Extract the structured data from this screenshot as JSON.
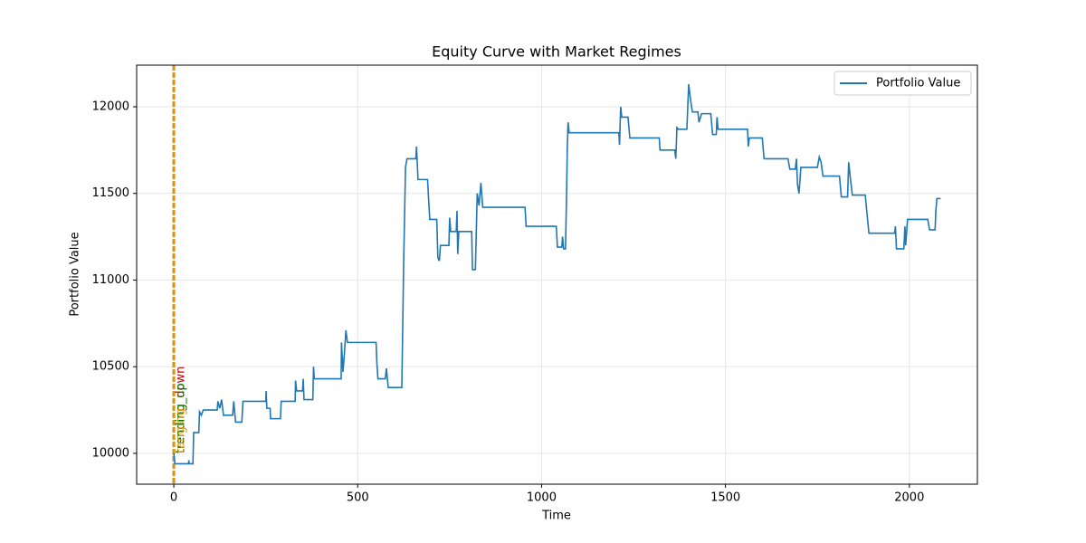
{
  "chart_data": {
    "type": "line",
    "title": "Equity Curve with Market Regimes",
    "xlabel": "Time",
    "ylabel": "Portfolio Value",
    "xlim": [
      -101,
      2185
    ],
    "ylim": [
      9822,
      12240
    ],
    "xticks": [
      0,
      500,
      1000,
      1500,
      2000
    ],
    "yticks": [
      10000,
      10500,
      11000,
      11500,
      12000
    ],
    "grid": true,
    "legend": "upper right",
    "x": [
      0,
      3,
      40,
      41,
      42,
      52,
      54,
      68,
      70,
      75,
      80,
      118,
      120,
      125,
      130,
      135,
      160,
      163,
      168,
      185,
      188,
      250,
      251,
      253,
      262,
      263,
      290,
      292,
      330,
      331,
      334,
      350,
      352,
      354,
      378,
      380,
      382,
      455,
      456,
      460,
      464,
      468,
      472,
      550,
      552,
      555,
      575,
      578,
      583,
      620,
      625,
      630,
      634,
      658,
      660,
      664,
      690,
      693,
      696,
      715,
      718,
      722,
      725,
      748,
      750,
      753,
      768,
      770,
      772,
      775,
      810,
      812,
      820,
      825,
      830,
      835,
      840,
      955,
      958,
      1040,
      1043,
      1055,
      1057,
      1060,
      1065,
      1068,
      1070,
      1072,
      1075,
      1210,
      1212,
      1215,
      1218,
      1235,
      1240,
      1320,
      1322,
      1362,
      1365,
      1368,
      1372,
      1395,
      1400,
      1405,
      1410,
      1425,
      1428,
      1435,
      1460,
      1465,
      1475,
      1477,
      1480,
      1560,
      1562,
      1565,
      1600,
      1605,
      1670,
      1675,
      1690,
      1693,
      1696,
      1700,
      1705,
      1750,
      1755,
      1760,
      1765,
      1810,
      1815,
      1832,
      1835,
      1840,
      1845,
      1880,
      1885,
      1890,
      1960,
      1962,
      1965,
      1985,
      1988,
      1990,
      1995,
      2050,
      2055,
      2070,
      2072,
      2075,
      2085
    ],
    "series": [
      {
        "name": "Portfolio Value",
        "color": "#1f77b4",
        "values": [
          10000,
          9940,
          9940,
          9960,
          9940,
          9940,
          10120,
          10120,
          10240,
          10220,
          10250,
          10250,
          10300,
          10260,
          10310,
          10220,
          10220,
          10300,
          10180,
          10180,
          10300,
          10300,
          10360,
          10260,
          10260,
          10200,
          10200,
          10300,
          10300,
          10420,
          10360,
          10360,
          10430,
          10310,
          10310,
          10500,
          10430,
          10430,
          10640,
          10470,
          10580,
          10710,
          10640,
          10640,
          10530,
          10430,
          10430,
          10490,
          10380,
          10380,
          11100,
          11650,
          11700,
          11700,
          11770,
          11580,
          11580,
          11460,
          11350,
          11350,
          11130,
          11110,
          11200,
          11200,
          11360,
          11280,
          11280,
          11400,
          11150,
          11280,
          11280,
          11060,
          11060,
          11500,
          11430,
          11560,
          11420,
          11420,
          11310,
          11310,
          11190,
          11190,
          11250,
          11180,
          11180,
          11500,
          11770,
          11910,
          11850,
          11850,
          11780,
          12000,
          11940,
          11940,
          11820,
          11820,
          11750,
          11750,
          11700,
          11880,
          11870,
          11870,
          12130,
          12040,
          11970,
          11970,
          11910,
          11960,
          11960,
          11840,
          11840,
          11940,
          11870,
          11870,
          11770,
          11820,
          11820,
          11700,
          11700,
          11640,
          11640,
          11700,
          11550,
          11500,
          11650,
          11650,
          11710,
          11680,
          11600,
          11600,
          11480,
          11480,
          11680,
          11580,
          11490,
          11490,
          11380,
          11270,
          11270,
          11310,
          11180,
          11180,
          11310,
          11200,
          11350,
          11350,
          11290,
          11290,
          11400,
          11470,
          11470
        ]
      }
    ],
    "regimes": [
      {
        "x": 0,
        "label": "trending_down",
        "color": "#cc0000"
      },
      {
        "x": 0,
        "label": "trending_up",
        "color": "#007a00"
      },
      {
        "x": 0,
        "label": "ranging",
        "color": "#e69500"
      }
    ]
  }
}
